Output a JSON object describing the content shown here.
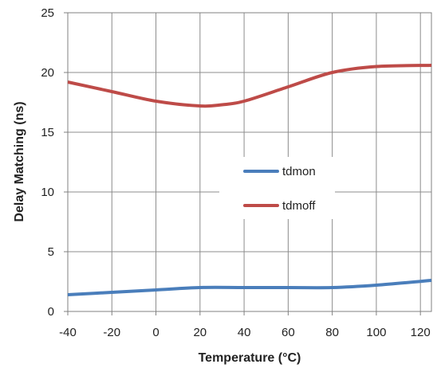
{
  "chart_data": {
    "type": "line",
    "xlabel": "Temperature (°C)",
    "ylabel": "Delay Matching (ns)",
    "xlim": [
      -40,
      125
    ],
    "ylim": [
      0,
      25
    ],
    "xticks": [
      -40,
      -20,
      0,
      20,
      40,
      60,
      80,
      100,
      120
    ],
    "yticks": [
      0,
      5,
      10,
      15,
      20,
      25
    ],
    "grid": true,
    "legend_position": "center-right",
    "series": [
      {
        "name": "tdmon",
        "color": "#4a7ebb",
        "x": [
          -40,
          -20,
          0,
          20,
          40,
          60,
          80,
          100,
          125
        ],
        "y": [
          1.4,
          1.6,
          1.8,
          2.0,
          2.0,
          2.0,
          2.0,
          2.2,
          2.6
        ]
      },
      {
        "name": "tdmoff",
        "color": "#be4b48",
        "x": [
          -40,
          -20,
          0,
          20,
          30,
          40,
          60,
          80,
          100,
          125
        ],
        "y": [
          19.2,
          18.4,
          17.6,
          17.2,
          17.3,
          17.6,
          18.8,
          20.0,
          20.5,
          20.6
        ]
      }
    ]
  }
}
